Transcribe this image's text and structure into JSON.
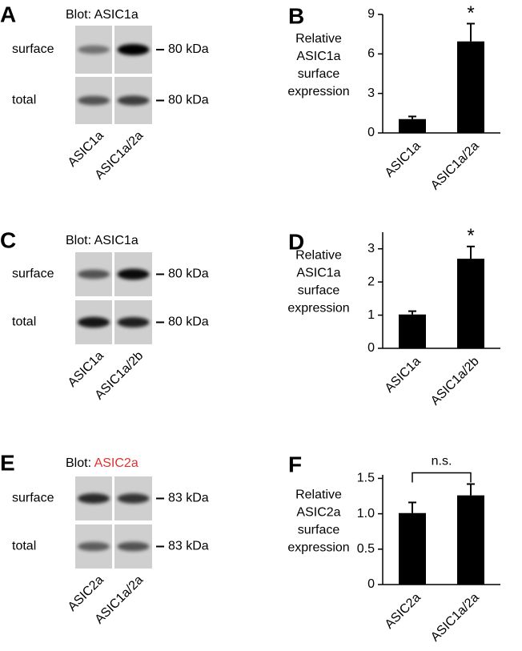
{
  "panels": [
    {
      "letter": "A",
      "blot_prefix": "Blot:",
      "blot_target": "ASIC1a",
      "rows": [
        "surface",
        "total"
      ],
      "markers": [
        "80 kDa",
        "80 kDa"
      ],
      "lanes": [
        "ASIC1a",
        "ASIC1a/2a"
      ]
    },
    {
      "letter": "C",
      "blot_prefix": "Blot:",
      "blot_target": "ASIC1a",
      "rows": [
        "surface",
        "total"
      ],
      "markers": [
        "80 kDa",
        "80 kDa"
      ],
      "lanes": [
        "ASIC1a",
        "ASIC1a/2b"
      ]
    },
    {
      "letter": "E",
      "blot_prefix": "Blot:",
      "blot_target": "ASIC2a",
      "target_color": "#e0312f",
      "rows": [
        "surface",
        "total"
      ],
      "markers": [
        "83 kDa",
        "83 kDa"
      ],
      "lanes": [
        "ASIC2a",
        "ASIC1a/2a"
      ]
    }
  ],
  "chart_data": [
    {
      "type": "bar",
      "panel_label": "B",
      "ylabel_lines": [
        "Relative",
        "ASIC1a",
        "surface",
        "expression"
      ],
      "categories": [
        "ASIC1a",
        "ASIC1a/2a"
      ],
      "values": [
        1.05,
        6.95
      ],
      "errors": [
        0.2,
        1.35
      ],
      "color": "#000000",
      "ylim": [
        0,
        9
      ],
      "yticks": [
        0,
        3,
        6,
        9
      ],
      "annotation": "*",
      "annotation_bar": 1
    },
    {
      "type": "bar",
      "panel_label": "D",
      "ylabel_lines": [
        "Relative",
        "ASIC1a",
        "surface",
        "expression"
      ],
      "categories": [
        "ASIC1a",
        "ASIC1a/2b"
      ],
      "values": [
        1.02,
        2.7
      ],
      "errors": [
        0.1,
        0.37
      ],
      "color": "#000000",
      "ylim": [
        0,
        3.5
      ],
      "yticks": [
        0,
        1,
        2,
        3
      ],
      "annotation": "*",
      "annotation_bar": 1
    },
    {
      "type": "bar",
      "panel_label": "F",
      "ylabel_lines": [
        "Relative",
        "ASIC2a",
        "surface",
        "expression"
      ],
      "ylabel_highlight": 1,
      "highlight_color": "#e0312f",
      "categories": [
        "ASIC2a",
        "ASIC1a/2a"
      ],
      "values": [
        1.01,
        1.26
      ],
      "errors": [
        0.15,
        0.16
      ],
      "color": "#000000",
      "ylim": [
        0,
        1.55
      ],
      "yticks": [
        0,
        {
          "value": 0.5,
          "label": "0.5"
        },
        {
          "value": 1.0,
          "label": "1.0"
        },
        {
          "value": 1.5,
          "label": "1.5"
        }
      ],
      "bracket_label": "n.s."
    }
  ]
}
